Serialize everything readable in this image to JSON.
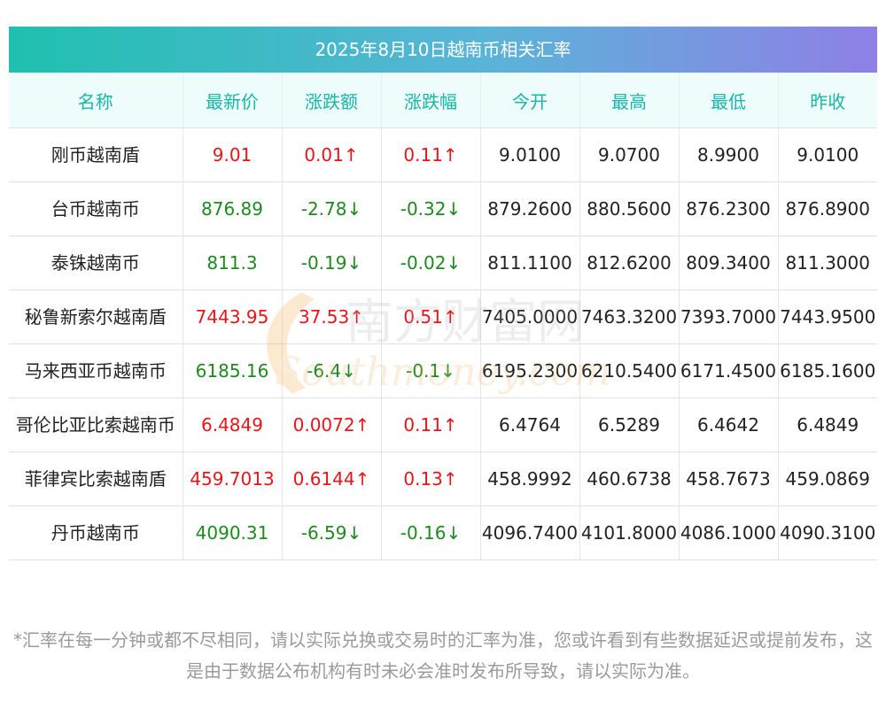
{
  "title": "2025年8月10日越南币相关汇率",
  "headers": [
    "名称",
    "最新价",
    "涨跌额",
    "涨跌幅",
    "今开",
    "最高",
    "最低",
    "昨收"
  ],
  "rows": [
    {
      "name": "刚币越南盾",
      "latest": "9.01",
      "change": "0.01↑",
      "pct": "0.11↑",
      "open": "9.0100",
      "high": "9.0700",
      "low": "8.9900",
      "prev": "9.0100",
      "dir": "up"
    },
    {
      "name": "台币越南币",
      "latest": "876.89",
      "change": "-2.78↓",
      "pct": "-0.32↓",
      "open": "879.2600",
      "high": "880.5600",
      "low": "876.2300",
      "prev": "876.8900",
      "dir": "down"
    },
    {
      "name": "泰铢越南币",
      "latest": "811.3",
      "change": "-0.19↓",
      "pct": "-0.02↓",
      "open": "811.1100",
      "high": "812.6200",
      "low": "809.3400",
      "prev": "811.3000",
      "dir": "down"
    },
    {
      "name": "秘鲁新索尔越南盾",
      "latest": "7443.95",
      "change": "37.53↑",
      "pct": "0.51↑",
      "open": "7405.0000",
      "high": "7463.3200",
      "low": "7393.7000",
      "prev": "7443.9500",
      "dir": "up"
    },
    {
      "name": "马来西亚币越南币",
      "latest": "6185.16",
      "change": "-6.4↓",
      "pct": "-0.1↓",
      "open": "6195.2300",
      "high": "6210.5400",
      "low": "6171.4500",
      "prev": "6185.1600",
      "dir": "down"
    },
    {
      "name": "哥伦比亚比索越南币",
      "latest": "6.4849",
      "change": "0.0072↑",
      "pct": "0.11↑",
      "open": "6.4764",
      "high": "6.5289",
      "low": "6.4642",
      "prev": "6.4849",
      "dir": "up"
    },
    {
      "name": "菲律宾比索越南盾",
      "latest": "459.7013",
      "change": "0.6144↑",
      "pct": "0.13↑",
      "open": "458.9992",
      "high": "460.6738",
      "low": "458.7673",
      "prev": "459.0869",
      "dir": "up"
    },
    {
      "name": "丹币越南币",
      "latest": "4090.31",
      "change": "-6.59↓",
      "pct": "-0.16↓",
      "open": "4096.7400",
      "high": "4101.8000",
      "low": "4086.1000",
      "prev": "4090.3100",
      "dir": "down"
    }
  ],
  "watermark": {
    "cn": "南方财富网",
    "en": "Southmoney.com"
  },
  "note": "*汇率在每一分钟或都不尽相同，请以实际兑换或交易时的汇率为准，您或许看到有些数据延迟或提前发布，这是由于数据公布机构有时未必会准时发布所导致，请以实际为准。",
  "colors": {
    "up": "#e8141a",
    "down": "#1e8a1e",
    "header_text": "#16b7a8",
    "header_bg": "#eefcfb"
  }
}
